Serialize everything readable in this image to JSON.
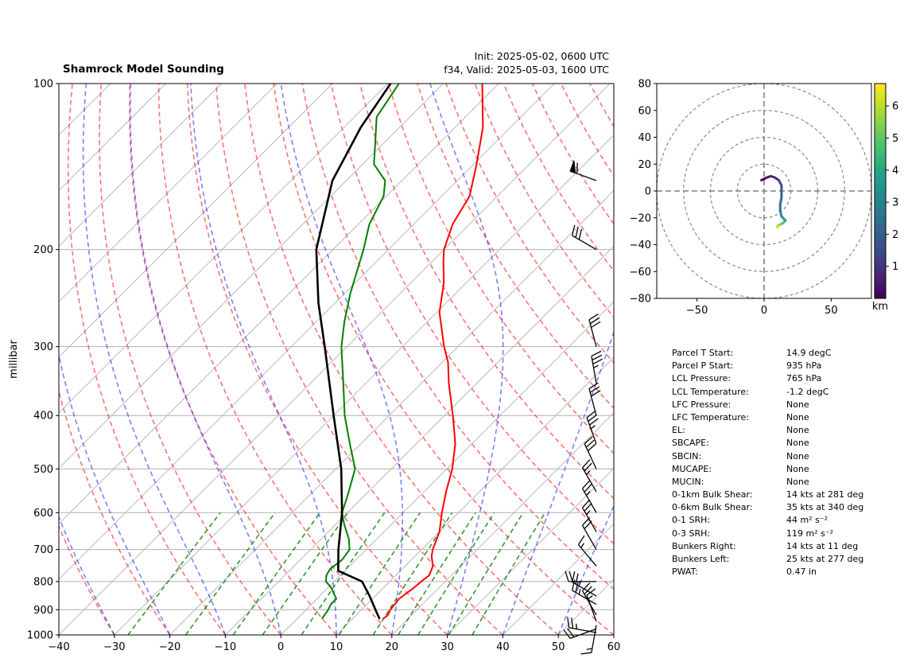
{
  "title": "Shamrock Model Sounding",
  "init_line": "Init: 2025-05-02, 0600 UTC",
  "valid_line": "f34, Valid: 2025-05-03, 1600 UTC",
  "colors": {
    "temperature": "#ff0000",
    "dewpoint": "#008000",
    "parcel": "#000000",
    "dry_adiabat": "#ff0000",
    "moist_adiabat": "#0000ff",
    "mixing_ratio": "#008000",
    "hodograph_colormap": "viridis"
  },
  "chart_data": [
    {
      "type": "line",
      "subtype": "skew-t log-p",
      "ylabel": "millibar",
      "xlabel": "",
      "xlim": [
        -40,
        60
      ],
      "ylim": [
        1000,
        100
      ],
      "y_scale": "log",
      "x_ticks": [
        -40,
        -30,
        -20,
        -10,
        0,
        10,
        20,
        30,
        40,
        50,
        60
      ],
      "y_ticks": [
        1000,
        900,
        800,
        700,
        600,
        500,
        400,
        300,
        200,
        100
      ],
      "grid": true,
      "series": [
        {
          "key": "temperature",
          "points": [
            [
              935,
              15.5
            ],
            [
              920,
              15.7
            ],
            [
              900,
              15.2
            ],
            [
              860,
              14.8
            ],
            [
              820,
              15.5
            ],
            [
              800,
              15.7
            ],
            [
              780,
              16.0
            ],
            [
              750,
              15.0
            ],
            [
              720,
              13.0
            ],
            [
              700,
              12.0
            ],
            [
              650,
              10.0
            ],
            [
              600,
              7.0
            ],
            [
              550,
              4.0
            ],
            [
              500,
              1.0
            ],
            [
              450,
              -3.0
            ],
            [
              400,
              -8.5
            ],
            [
              350,
              -15.0
            ],
            [
              320,
              -19.0
            ],
            [
              300,
              -22.5
            ],
            [
              260,
              -29.5
            ],
            [
              230,
              -34.0
            ],
            [
              210,
              -38.0
            ],
            [
              200,
              -40.0
            ],
            [
              180,
              -43.0
            ],
            [
              160,
              -45.0
            ],
            [
              140,
              -49.5
            ],
            [
              120,
              -55.0
            ],
            [
              100,
              -63.0
            ]
          ]
        },
        {
          "key": "dewpoint",
          "points": [
            [
              935,
              4.5
            ],
            [
              900,
              4.0
            ],
            [
              880,
              3.5
            ],
            [
              860,
              3.5
            ],
            [
              840,
              2.0
            ],
            [
              820,
              0.5
            ],
            [
              800,
              -1.5
            ],
            [
              780,
              -2.5
            ],
            [
              760,
              -3.0
            ],
            [
              730,
              -2.5
            ],
            [
              700,
              -3.0
            ],
            [
              670,
              -5.0
            ],
            [
              630,
              -8.5
            ],
            [
              600,
              -11.0
            ],
            [
              560,
              -13.0
            ],
            [
              500,
              -16.5
            ],
            [
              450,
              -22.0
            ],
            [
              400,
              -28.0
            ],
            [
              350,
              -34.0
            ],
            [
              300,
              -41.0
            ],
            [
              270,
              -45.0
            ],
            [
              240,
              -49.0
            ],
            [
              200,
              -54.5
            ],
            [
              180,
              -58.0
            ],
            [
              160,
              -60.5
            ],
            [
              150,
              -63.0
            ],
            [
              140,
              -68.0
            ],
            [
              130,
              -71.0
            ],
            [
              115,
              -76.0
            ],
            [
              100,
              -78.0
            ]
          ]
        },
        {
          "key": "parcel",
          "points": [
            [
              935,
              14.9
            ],
            [
              900,
              12.5
            ],
            [
              850,
              9.0
            ],
            [
              800,
              5.0
            ],
            [
              765,
              -1.2
            ],
            [
              700,
              -5.0
            ],
            [
              600,
              -11.0
            ],
            [
              500,
              -19.0
            ],
            [
              400,
              -30.0
            ],
            [
              300,
              -44.0
            ],
            [
              250,
              -53.0
            ],
            [
              200,
              -63.0
            ],
            [
              150,
              -72.5
            ],
            [
              120,
              -77.0
            ],
            [
              100,
              -79.5
            ]
          ]
        }
      ],
      "wind_barbs": [
        {
          "p": 990,
          "speed": 25,
          "dir": 280
        },
        {
          "p": 975,
          "speed": 20,
          "dir": 250
        },
        {
          "p": 960,
          "speed": 15,
          "dir": 190
        },
        {
          "p": 945,
          "speed": 15,
          "dir": 340
        },
        {
          "p": 920,
          "speed": 20,
          "dir": 330
        },
        {
          "p": 880,
          "speed": 25,
          "dir": 300
        },
        {
          "p": 850,
          "speed": 25,
          "dir": 300
        },
        {
          "p": 800,
          "speed": 20,
          "dir": 270
        },
        {
          "p": 750,
          "speed": 15,
          "dir": 320
        },
        {
          "p": 700,
          "speed": 20,
          "dir": 330
        },
        {
          "p": 650,
          "speed": 25,
          "dir": 330
        },
        {
          "p": 600,
          "speed": 25,
          "dir": 330
        },
        {
          "p": 550,
          "speed": 25,
          "dir": 330
        },
        {
          "p": 500,
          "speed": 30,
          "dir": 335
        },
        {
          "p": 450,
          "speed": 35,
          "dir": 340
        },
        {
          "p": 400,
          "speed": 30,
          "dir": 345
        },
        {
          "p": 350,
          "speed": 35,
          "dir": 350
        },
        {
          "p": 300,
          "speed": 30,
          "dir": 345
        },
        {
          "p": 200,
          "speed": 30,
          "dir": 300
        },
        {
          "p": 150,
          "speed": 60,
          "dir": 290
        }
      ]
    },
    {
      "type": "line",
      "subtype": "hodograph",
      "xlabel": "",
      "ylabel": "",
      "xlim": [
        -80,
        80
      ],
      "ylim": [
        -80,
        80
      ],
      "x_ticks": [
        -50,
        0,
        50
      ],
      "y_ticks": [
        -80,
        -60,
        -40,
        -20,
        0,
        20,
        40,
        60,
        80
      ],
      "range_rings": [
        20,
        40,
        60,
        80
      ],
      "colorbar_label": "km",
      "colorbar_range": [
        0,
        6.7
      ],
      "colorbar_ticks": [
        1,
        2,
        3,
        4,
        5,
        6
      ],
      "points": [
        [
          -2,
          8,
          0.05
        ],
        [
          2,
          10,
          0.3
        ],
        [
          5,
          11,
          0.6
        ],
        [
          8,
          10,
          0.9
        ],
        [
          11,
          8,
          1.2
        ],
        [
          13,
          4,
          1.5
        ],
        [
          13,
          0,
          1.8
        ],
        [
          13,
          -5,
          2.1
        ],
        [
          12,
          -10,
          2.4
        ],
        [
          12,
          -15,
          2.8
        ],
        [
          13,
          -19,
          3.2
        ],
        [
          15,
          -21,
          3.6
        ],
        [
          16,
          -22,
          4.0
        ],
        [
          14,
          -24,
          4.6
        ],
        [
          12,
          -25,
          5.2
        ],
        [
          10,
          -26,
          5.8
        ],
        [
          10,
          -27,
          6.3
        ]
      ]
    }
  ],
  "params": [
    {
      "label": "Parcel T Start:",
      "value": "14.9 degC"
    },
    {
      "label": "Parcel P Start:",
      "value": "935 hPa"
    },
    {
      "label": "LCL Pressure:",
      "value": "765 hPa"
    },
    {
      "label": "LCL Temperature:",
      "value": "-1.2 degC"
    },
    {
      "label": "LFC Pressure:",
      "value": "None"
    },
    {
      "label": "LFC Temperature:",
      "value": "None"
    },
    {
      "label": "EL:",
      "value": "None"
    },
    {
      "label": "SBCAPE:",
      "value": "None"
    },
    {
      "label": "SBCIN:",
      "value": "None"
    },
    {
      "label": "MUCAPE:",
      "value": "None"
    },
    {
      "label": "MUCIN:",
      "value": "None"
    },
    {
      "label": "0-1km Bulk Shear:",
      "value": "14 kts at 281 deg"
    },
    {
      "label": "0-6km Bulk Shear:",
      "value": "35 kts at 340 deg"
    },
    {
      "label": "0-1 SRH:",
      "value": "44 m² s⁻²"
    },
    {
      "label": "0-3 SRH:",
      "value": "119 m² s⁻²"
    },
    {
      "label": "Bunkers Right:",
      "value": "14 kts at 11 deg"
    },
    {
      "label": "Bunkers Left:",
      "value": "25 kts at 277 deg"
    },
    {
      "label": "PWAT:",
      "value": "0.47 in"
    }
  ]
}
